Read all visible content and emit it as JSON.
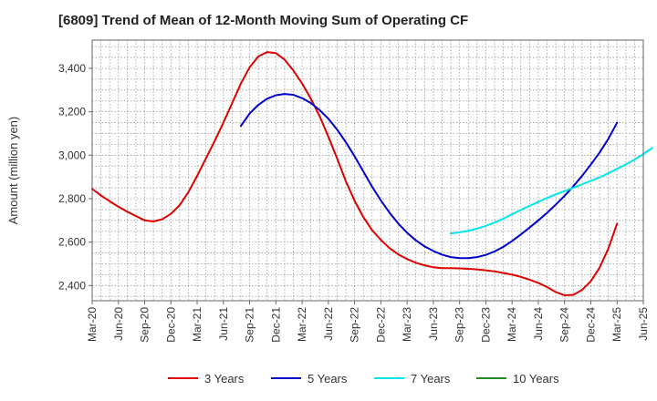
{
  "chart_data": {
    "type": "line",
    "title": "[6809]  Trend of Mean of 12-Month Moving Sum of Operating CF",
    "xlabel": "",
    "ylabel": "Amount (million yen)",
    "ylim": [
      2330,
      3530
    ],
    "yticks": [
      2400,
      2600,
      2800,
      3000,
      3200,
      3400
    ],
    "ytick_labels": [
      "2,400",
      "2,600",
      "2,800",
      "3,000",
      "3,200",
      "3,400"
    ],
    "x_start": "Mar-20",
    "x_end": "Jun-25",
    "xtick_labels": [
      "Mar-20",
      "Jun-20",
      "Sep-20",
      "Dec-20",
      "Mar-21",
      "Jun-21",
      "Sep-21",
      "Dec-21",
      "Mar-22",
      "Jun-22",
      "Sep-22",
      "Dec-22",
      "Mar-23",
      "Jun-23",
      "Sep-23",
      "Dec-23",
      "Mar-24",
      "Jun-24",
      "Sep-24",
      "Dec-24",
      "Mar-25",
      "Jun-25"
    ],
    "grid": true,
    "legend_position": "bottom",
    "series": [
      {
        "name": "3 Years",
        "color": "#dd0000",
        "start": "Mar-20",
        "values": [
          2845,
          2815,
          2788,
          2763,
          2740,
          2720,
          2700,
          2695,
          2705,
          2730,
          2770,
          2830,
          2905,
          2985,
          3065,
          3150,
          3240,
          3330,
          3405,
          3455,
          3475,
          3470,
          3440,
          3390,
          3330,
          3260,
          3180,
          3085,
          2985,
          2880,
          2790,
          2715,
          2655,
          2610,
          2572,
          2543,
          2522,
          2505,
          2493,
          2484,
          2480,
          2480,
          2479,
          2477,
          2474,
          2470,
          2465,
          2458,
          2450,
          2440,
          2427,
          2412,
          2393,
          2370,
          2355,
          2357,
          2380,
          2420,
          2482,
          2570,
          2685
        ]
      },
      {
        "name": "5 Years",
        "color": "#0000cc",
        "start": "Aug-21",
        "values": [
          3135,
          3192,
          3232,
          3260,
          3276,
          3282,
          3278,
          3263,
          3240,
          3208,
          3168,
          3118,
          3060,
          2995,
          2925,
          2855,
          2792,
          2735,
          2685,
          2643,
          2608,
          2580,
          2559,
          2542,
          2531,
          2526,
          2526,
          2531,
          2541,
          2557,
          2578,
          2605,
          2635,
          2667,
          2700,
          2735,
          2773,
          2813,
          2857,
          2905,
          2957,
          3012,
          3075,
          3150
        ]
      },
      {
        "name": "7 Years",
        "color": "#00e5ee",
        "start": "Aug-23",
        "values": [
          2640,
          2645,
          2652,
          2662,
          2675,
          2690,
          2708,
          2728,
          2748,
          2767,
          2785,
          2803,
          2820,
          2835,
          2850,
          2866,
          2882,
          2898,
          2917,
          2937,
          2958,
          2980,
          3005,
          3033
        ]
      },
      {
        "name": "10 Years",
        "color": "#228b22",
        "start": "",
        "values": []
      }
    ]
  }
}
